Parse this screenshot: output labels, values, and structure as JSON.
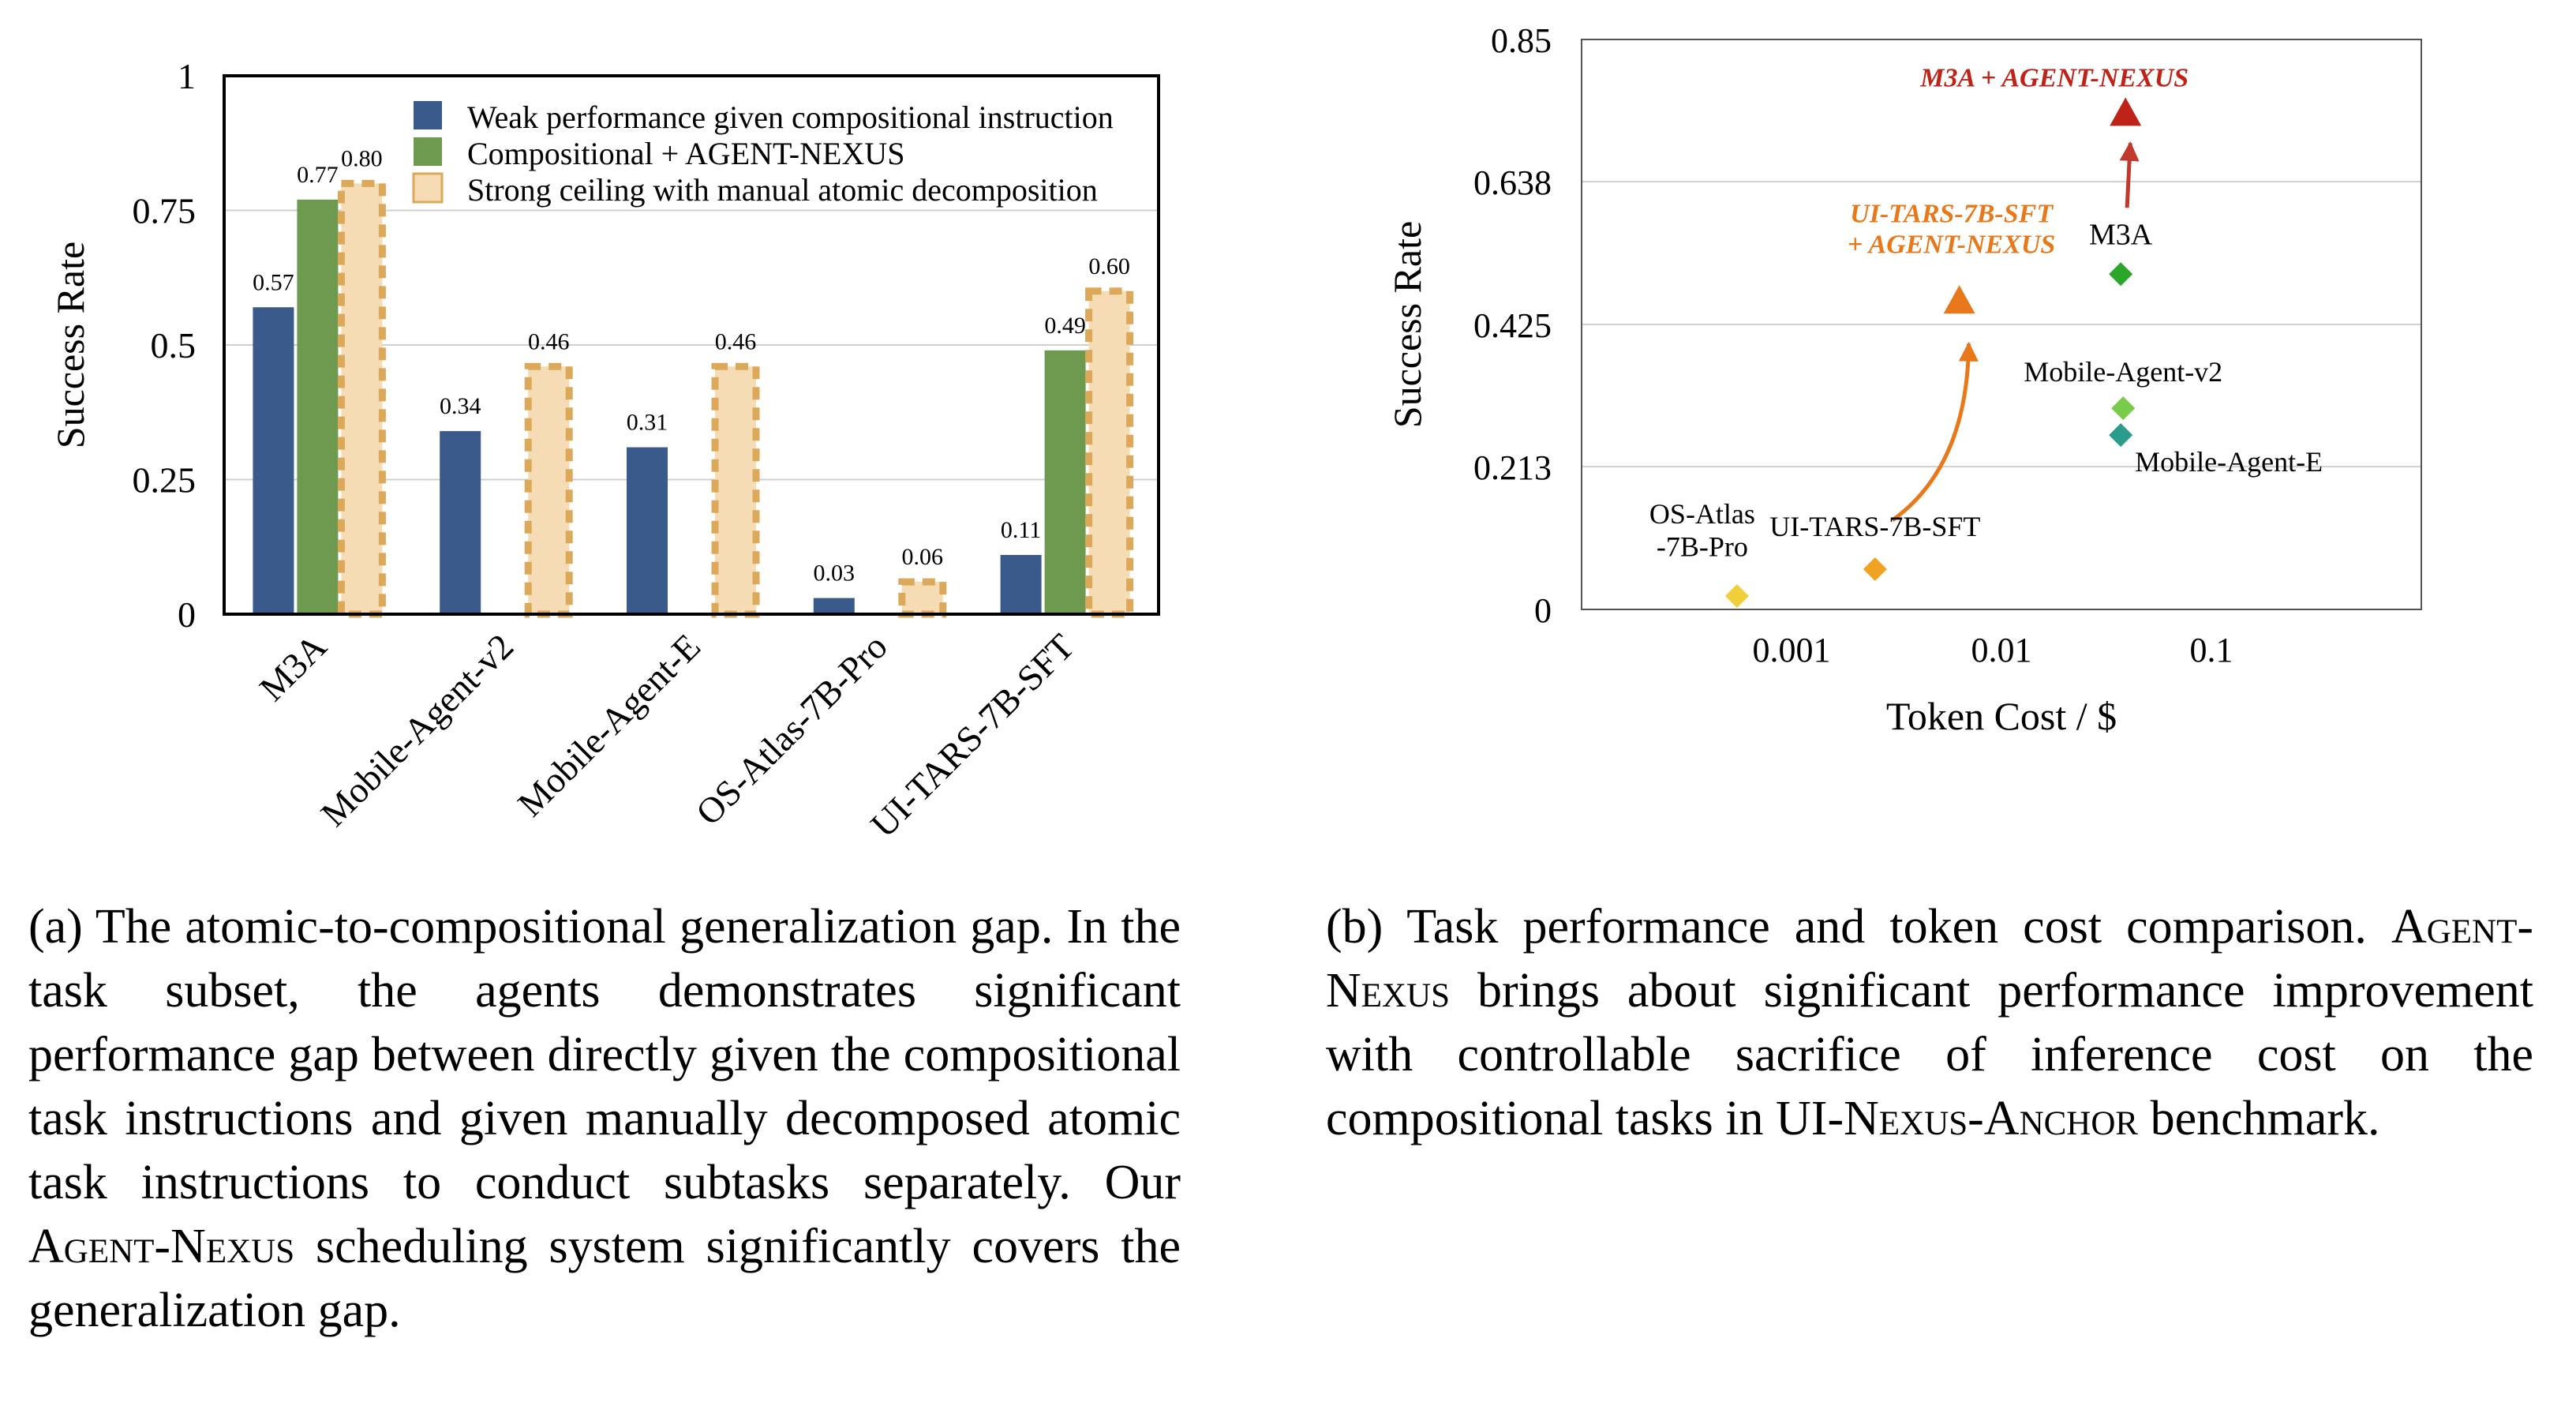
{
  "chart_data": [
    {
      "type": "bar",
      "ylabel": "Success Rate",
      "ylim": [
        0,
        1
      ],
      "yticks": [
        "0",
        "0.25",
        "0.5",
        "0.75",
        "1"
      ],
      "categories": [
        "M3A",
        "Mobile-Agent-v2",
        "Mobile-Agent-E",
        "OS-Atlas-7B-Pro",
        "UI-TARS-7B-SFT"
      ],
      "series": [
        {
          "name": "Weak performance given compositional instruction",
          "color": "#3a5a8c",
          "values": [
            0.57,
            0.34,
            0.31,
            0.03,
            0.11
          ],
          "labels": [
            "0.57",
            "0.34",
            "0.31",
            "0.03",
            "0.11"
          ]
        },
        {
          "name": "Compositional + AGENT-NEXUS",
          "color": "#6e9a4f",
          "values": [
            0.77,
            null,
            null,
            null,
            0.49
          ],
          "labels": [
            "0.77",
            "",
            "",
            "",
            "0.49"
          ]
        },
        {
          "name": "Strong ceiling with manual atomic decomposition",
          "color": "#f5dcb5",
          "edge": "#dca85a",
          "values": [
            0.8,
            0.46,
            0.46,
            0.06,
            0.6
          ],
          "labels": [
            "0.80",
            "0.46",
            "0.46",
            "0.06",
            "0.60"
          ]
        }
      ],
      "legend": "top-right",
      "grid": true
    },
    {
      "type": "scatter",
      "xlabel": "Token Cost / $",
      "ylabel": "Success Rate",
      "xscale": "log",
      "xlim": [
        0.0001,
        1
      ],
      "xticks": [
        "0.001",
        "0.01",
        "0.1"
      ],
      "ylim": [
        0,
        0.85
      ],
      "yticks": [
        "0",
        "0.213",
        "0.425",
        "0.638",
        "0.85"
      ],
      "grid": true,
      "points": [
        {
          "label": "OS-Atlas\n-7B-Pro",
          "x": 0.00055,
          "y": 0.02,
          "marker": "diamond",
          "color": "#f0cf3a"
        },
        {
          "label": "UI-TARS-7B-SFT",
          "x": 0.0025,
          "y": 0.06,
          "marker": "diamond",
          "color": "#f2a223"
        },
        {
          "label": "Mobile-Agent-v2",
          "x": 0.038,
          "y": 0.3,
          "marker": "diamond",
          "color": "#78cc4a"
        },
        {
          "label": "Mobile-Agent-E",
          "x": 0.037,
          "y": 0.26,
          "marker": "diamond",
          "color": "#2a9c8c"
        },
        {
          "label": "M3A",
          "x": 0.037,
          "y": 0.5,
          "marker": "diamond",
          "color": "#2aa62a"
        },
        {
          "label": "UI-TARS-7B-SFT\n+ AGENT-NEXUS",
          "x": 0.0063,
          "y": 0.46,
          "marker": "triangle",
          "color": "#e8781a"
        },
        {
          "label": "M3A + AGENT-NEXUS",
          "x": 0.039,
          "y": 0.74,
          "marker": "triangle",
          "color": "#bf2317"
        }
      ],
      "arrows": [
        {
          "from": "UI-TARS-7B-SFT",
          "to": "UI-TARS-7B-SFT\n+ AGENT-NEXUS",
          "color": "#e8781a"
        },
        {
          "from": "M3A",
          "to": "M3A + AGENT-NEXUS",
          "color": "#c0392b"
        }
      ]
    }
  ],
  "captions": {
    "a": {
      "p1": "(a) The atomic-to-compositional generalization gap. In the task subset, the agents demonstrates significant performance gap between directly given the compositional task instructions and given manually decomposed atomic task instructions to conduct subtasks separately. Our ",
      "sc": "Agent-Nexus",
      "p2": " scheduling system significantly covers the generalization gap."
    },
    "b": {
      "p1": "(b) Task performance and token cost comparison. ",
      "sc1": "Agent-Nexus",
      "p2": " brings about significant performance improvement with controllable sacrifice of inference cost on the compositional tasks in UI-",
      "sc2": "Nexus-Anchor",
      "p3": " benchmark."
    }
  }
}
